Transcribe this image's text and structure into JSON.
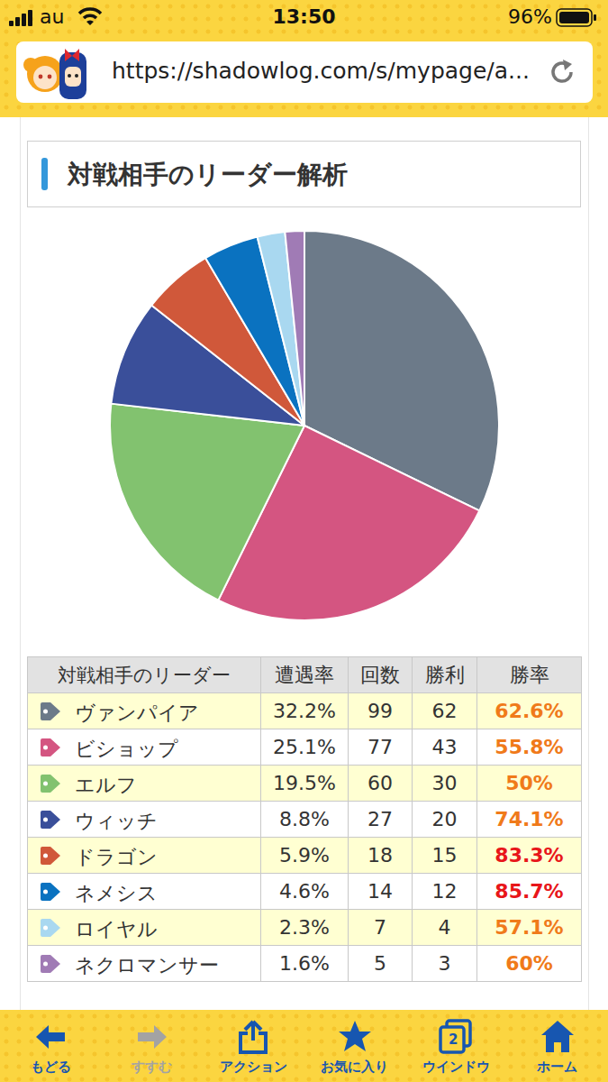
{
  "status_bar": {
    "carrier": "au",
    "time": "13:50",
    "battery": "96%"
  },
  "browser": {
    "url": "https://shadowlog.com/s/mypage/a..."
  },
  "section_title": "対戦相手のリーダー解析",
  "chart_data": {
    "type": "pie",
    "categories": [
      "ヴァンパイア",
      "ビショップ",
      "エルフ",
      "ウィッチ",
      "ドラゴン",
      "ネメシス",
      "ロイヤル",
      "ネクロマンサー"
    ],
    "values": [
      32.2,
      25.1,
      19.5,
      8.8,
      5.9,
      4.6,
      2.3,
      1.6
    ],
    "colors": [
      "#6c7a89",
      "#d45581",
      "#82c26f",
      "#3a4f9a",
      "#d0583a",
      "#0a72c0",
      "#a9d8f0",
      "#a07bb5"
    ]
  },
  "table": {
    "header": [
      "対戦相手のリーダー",
      "遭遇率",
      "回数",
      "勝利",
      "勝率"
    ],
    "rows": [
      [
        "ヴァンパイア",
        "32.2%",
        99,
        62,
        "62.6%"
      ],
      [
        "ビショップ",
        "25.1%",
        77,
        43,
        "55.8%"
      ],
      [
        "エルフ",
        "19.5%",
        60,
        30,
        "50%"
      ],
      [
        "ウィッチ",
        "8.8%",
        27,
        20,
        "74.1%"
      ],
      [
        "ドラゴン",
        "5.9%",
        18,
        15,
        "83.3%"
      ],
      [
        "ネメシス",
        "4.6%",
        14,
        12,
        "85.7%"
      ],
      [
        "ロイヤル",
        "2.3%",
        7,
        4,
        "57.1%"
      ],
      [
        "ネクロマンサー",
        "1.6%",
        5,
        3,
        "60%"
      ]
    ],
    "win_rate_colors": [
      "#f07a1a",
      "#f07a1a",
      "#f07a1a",
      "#f07a1a",
      "#e8161a",
      "#e8161a",
      "#f07a1a",
      "#f07a1a"
    ]
  },
  "toolbar": {
    "buttons": [
      {
        "label": "もどる"
      },
      {
        "label": "すすむ"
      },
      {
        "label": "アクション"
      },
      {
        "label": "お気に入り"
      },
      {
        "label": "ウインドウ",
        "badge": "2"
      },
      {
        "label": "ホーム"
      }
    ]
  }
}
